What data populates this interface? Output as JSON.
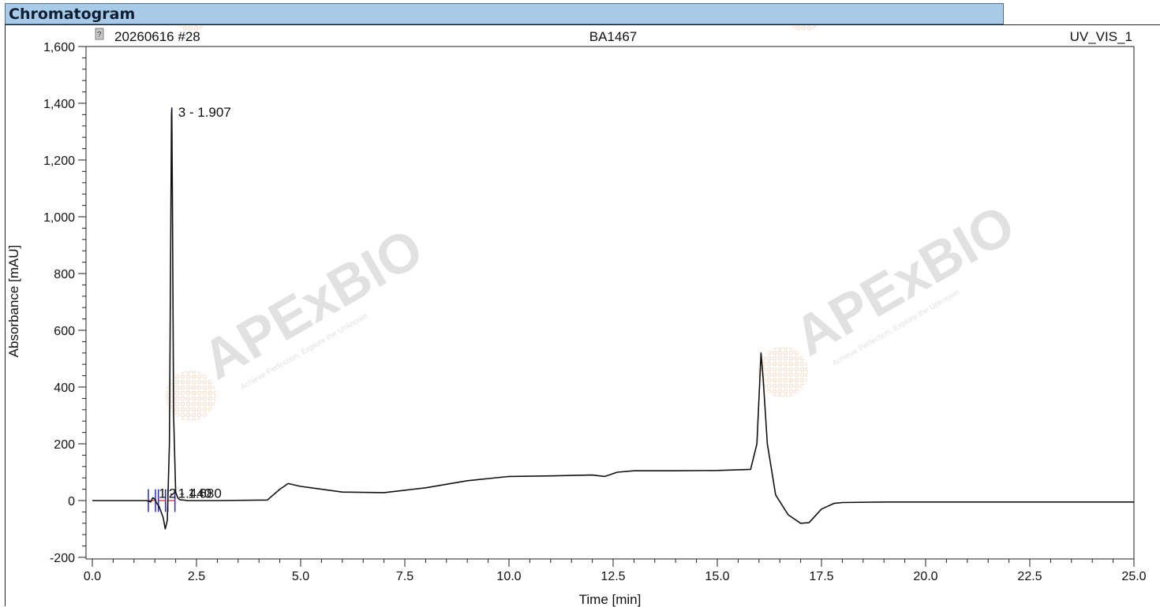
{
  "window": {
    "title": "Chromatogram"
  },
  "header": {
    "sample": "20260616 #28",
    "compound": "BA1467",
    "channel": "UV_VIS_1",
    "channel_icon": "sample-status-icon"
  },
  "watermark": {
    "brand": "APExBIO",
    "tagline": "Achieve Perfection, Explore the Unknown"
  },
  "chart_data": {
    "type": "line",
    "xlabel": "Time [min]",
    "ylabel": "Absorbance [mAU]",
    "xlim": [
      0,
      25
    ],
    "ylim": [
      -200,
      1600
    ],
    "x_ticks": [
      "0.0",
      "2.5",
      "5.0",
      "7.5",
      "10.0",
      "12.5",
      "15.0",
      "17.5",
      "20.0",
      "22.5",
      "25.0"
    ],
    "y_ticks": [
      "-200",
      "0",
      "200",
      "400",
      "600",
      "800",
      "1,000",
      "1,200",
      "1,400",
      "1,600"
    ],
    "grid": false,
    "line_color": "#111111",
    "series": [
      {
        "x": [
          0.0,
          1.3,
          1.4,
          1.45,
          1.5,
          1.55,
          1.6,
          1.7,
          1.75,
          1.8,
          1.85,
          1.88,
          1.9,
          1.907,
          1.92,
          1.95,
          2.0,
          2.05,
          2.1,
          2.3,
          3.0,
          4.2,
          4.5,
          4.7,
          5.0,
          6.0,
          7.0,
          8.0,
          9.0,
          10.0,
          11.0,
          12.0,
          12.3,
          12.6,
          13.0,
          14.0,
          15.0,
          15.8,
          15.95,
          16.05,
          16.1,
          16.2,
          16.4,
          16.7,
          17.0,
          17.2,
          17.5,
          17.8,
          18.0,
          19.0,
          20.0,
          22.0,
          25.0
        ],
        "y": [
          0,
          0,
          -5,
          10,
          5,
          -10,
          -20,
          -60,
          -100,
          -70,
          200,
          900,
          1360,
          1380,
          1100,
          300,
          30,
          10,
          3,
          0,
          0,
          2,
          40,
          60,
          50,
          30,
          28,
          45,
          70,
          85,
          87,
          90,
          85,
          100,
          105,
          105,
          106,
          110,
          200,
          520,
          430,
          200,
          20,
          -50,
          -80,
          -78,
          -30,
          -10,
          -7,
          -5,
          -5,
          -5,
          -5
        ]
      }
    ],
    "peaks": [
      {
        "label": "1 - 1.440",
        "time": 1.44
      },
      {
        "label": "2 - 1.680",
        "time": 1.68
      },
      {
        "label": "3 - 1.907",
        "time": 1.907,
        "height": 1380
      }
    ],
    "peak_marker_color": "#2a2acc",
    "baseline_marker_color": "#cc2222"
  }
}
